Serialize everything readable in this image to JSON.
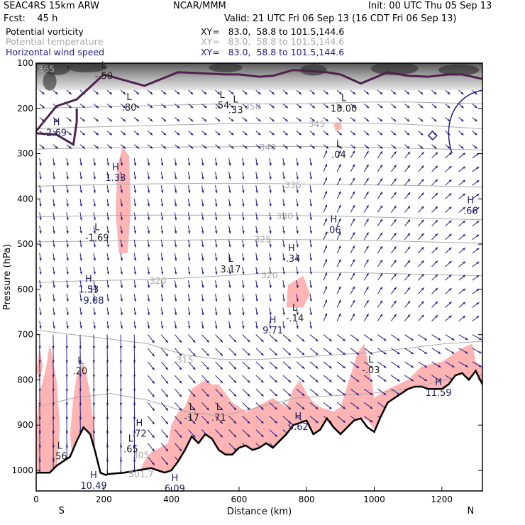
{
  "header": {
    "model": "SEAC4RS 15km ARW",
    "center": "NCAR/MMM",
    "init": "Init: 00 UTC Thu 05 Sep 13",
    "fcst": "Fcst:    45 h",
    "valid": "Valid: 21 UTC Fri 06 Sep 13 (16 CDT Fri 06 Sep 13)"
  },
  "legend": [
    {
      "name": "Potential vorticity",
      "xy": "XY=   83.0,  58.8 to 101.5,144.6",
      "color": "#000000"
    },
    {
      "name": "Potential temperature",
      "xy": "XY=   83.0,  58.8 to 101.5,144.6",
      "color": "#a8a8a8"
    },
    {
      "name": "Horizontal wind speed",
      "xy": "XY=   83.0,  58.8 to 101.5,144.6",
      "color": "#1e1e8c"
    }
  ],
  "chart_data": {
    "type": "cross-section",
    "xlabel": "Distance (km)",
    "ylabel": "Pressure (hPa)",
    "x_ticks": [
      0,
      200,
      400,
      600,
      800,
      1000,
      1200
    ],
    "y_ticks": [
      100,
      200,
      300,
      400,
      500,
      600,
      700,
      800,
      900,
      1000
    ],
    "xlim": [
      0,
      1320
    ],
    "ylim": [
      1050,
      100
    ],
    "end_labels": {
      "left": "S",
      "right": "N"
    },
    "colors": {
      "theta": "#a8a8a8",
      "wind": "#1e1e8c",
      "pv_high": "#ffb4b4",
      "terrain": "#000000",
      "dynamic_tropopause": "#502050"
    },
    "theta_labels": [
      {
        "text": "365",
        "x": 30,
        "p": 112
      },
      {
        "text": "350",
        "x": 640,
        "p": 195
      },
      {
        "text": "345",
        "x": 830,
        "p": 233
      },
      {
        "text": "340",
        "x": 685,
        "p": 285
      },
      {
        "text": "335",
        "x": 760,
        "p": 368
      },
      {
        "text": "330",
        "x": 735,
        "p": 437
      },
      {
        "text": "325",
        "x": 670,
        "p": 488
      },
      {
        "text": "320",
        "x": 360,
        "p": 580
      },
      {
        "text": "320",
        "x": 690,
        "p": 567
      },
      {
        "text": "315",
        "x": 440,
        "p": 755
      },
      {
        "text": "305",
        "x": 310,
        "p": 965
      },
      {
        "text": "301.7",
        "x": 310,
        "p": 1007
      }
    ],
    "hl_labels": [
      {
        "hl": "L",
        "value": "-.50",
        "x": 200,
        "p": 115
      },
      {
        "hl": "L",
        "value": ".80",
        "x": 275,
        "p": 185
      },
      {
        "hl": "L",
        "value": ".54",
        "x": 550,
        "p": 180
      },
      {
        "hl": "L",
        "value": ".33",
        "x": 590,
        "p": 190
      },
      {
        "hl": "L",
        "value": "18.00",
        "x": 910,
        "p": 187
      },
      {
        "hl": "H",
        "value": "2.69",
        "x": 60,
        "p": 240
      },
      {
        "hl": "L",
        "value": ".04",
        "x": 895,
        "p": 289
      },
      {
        "hl": "H",
        "value": "1.33",
        "x": 235,
        "p": 340
      },
      {
        "hl": "H",
        "value": ".06",
        "x": 880,
        "p": 455
      },
      {
        "hl": "H",
        "value": ".66",
        "x": 1285,
        "p": 413
      },
      {
        "hl": "L",
        "value": "-1.69",
        "x": 180,
        "p": 472
      },
      {
        "hl": "L",
        "value": "3.17",
        "x": 575,
        "p": 542
      },
      {
        "hl": "H",
        "value": "-.34",
        "x": 755,
        "p": 519
      },
      {
        "hl": "H",
        "value": "1.53",
        "x": 155,
        "p": 587
      },
      {
        "hl": "H",
        "value": "9.08",
        "x": 170,
        "p": 611
      },
      {
        "hl": "L",
        "value": "-.14",
        "x": 765,
        "p": 650
      },
      {
        "hl": "H",
        "value": "9.71",
        "x": 700,
        "p": 677
      },
      {
        "hl": "L",
        "value": "-.03",
        "x": 990,
        "p": 765
      },
      {
        "hl": "L",
        "value": ".20",
        "x": 130,
        "p": 767
      },
      {
        "hl": "H",
        "value": "11.59",
        "x": 1190,
        "p": 815
      },
      {
        "hl": "L",
        "value": "-17",
        "x": 460,
        "p": 870
      },
      {
        "hl": "L",
        "value": ".71",
        "x": 540,
        "p": 870
      },
      {
        "hl": "H",
        "value": "9.62",
        "x": 775,
        "p": 890
      },
      {
        "hl": "H",
        "value": ".72",
        "x": 305,
        "p": 905
      },
      {
        "hl": "L",
        "value": ".65",
        "x": 280,
        "p": 940
      },
      {
        "hl": "L",
        "value": ".56",
        "x": 70,
        "p": 955
      },
      {
        "hl": "H",
        "value": "10.49",
        "x": 170,
        "p": 1020
      },
      {
        "hl": "H",
        "value": "6.09",
        "x": 410,
        "p": 1027
      }
    ],
    "pv_overlay": [
      {
        "name": "upper-left-dip",
        "x": [
          0,
          5,
          40,
          90,
          110,
          100,
          70,
          40,
          10,
          0
        ]
      },
      {
        "name": "dynamic-tropopause",
        "x": [
          0,
          60,
          120,
          200,
          320,
          420,
          560,
          600,
          660,
          700,
          760,
          860,
          900,
          960,
          1040,
          1100,
          1160,
          1220,
          1260,
          1320
        ]
      }
    ],
    "terrain": {
      "x": [
        0,
        40,
        60,
        80,
        100,
        120,
        140,
        160,
        175,
        190,
        205,
        215,
        230,
        260,
        300,
        340,
        380,
        400,
        420,
        440,
        460,
        480,
        500,
        520,
        540,
        560,
        580,
        600,
        620,
        640,
        660,
        680,
        700,
        720,
        740,
        760,
        780,
        800,
        820,
        840,
        860,
        880,
        900,
        920,
        940,
        960,
        980,
        1000,
        1020,
        1040,
        1060,
        1080,
        1100,
        1120,
        1140,
        1160,
        1180,
        1200,
        1220,
        1240,
        1260,
        1280,
        1300,
        1320
      ],
      "p": [
        1005,
        1005,
        990,
        980,
        970,
        935,
        905,
        920,
        960,
        1005,
        1010,
        1008,
        1007,
        1005,
        1000,
        995,
        1005,
        1000,
        980,
        955,
        925,
        940,
        920,
        930,
        955,
        965,
        965,
        950,
        945,
        955,
        950,
        940,
        950,
        935,
        920,
        900,
        895,
        890,
        920,
        910,
        885,
        905,
        920,
        905,
        890,
        885,
        905,
        915,
        880,
        850,
        840,
        830,
        820,
        815,
        815,
        820,
        820,
        820,
        810,
        790,
        785,
        800,
        780,
        810
      ]
    },
    "wind_field": "horizontal wind vectors across the section"
  }
}
